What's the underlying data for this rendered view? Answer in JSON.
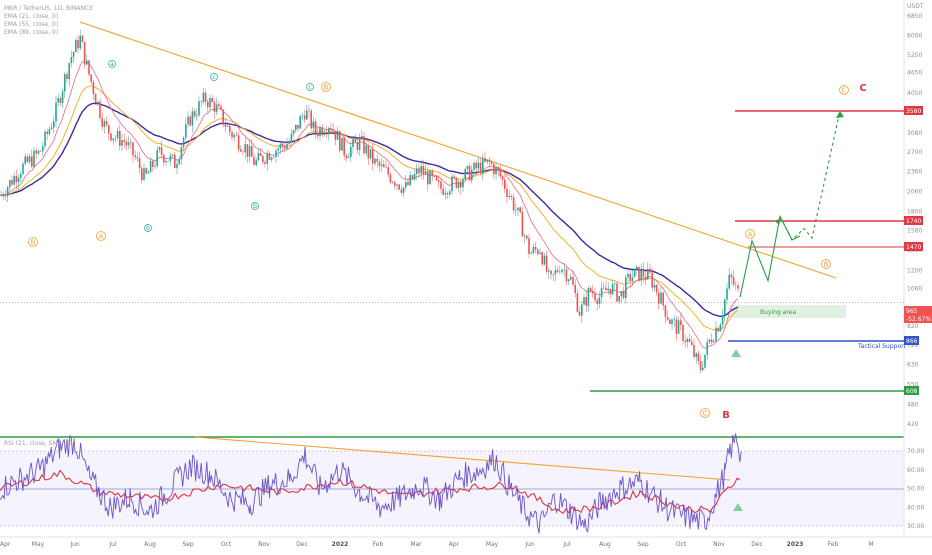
{
  "legend": {
    "title": "MKR / TetherUS, 1D, BINANCE",
    "ema1": "EMA (21, close, 0)",
    "ema2": "EMA (55, close, 0)",
    "ema3": "EMA (89, close, 0)",
    "rsi": "RSI (21, close, SMA, 21)"
  },
  "currency": "USDT",
  "colors": {
    "up": "#26a69a",
    "down": "#ef5350",
    "ema21": "#e66b8c",
    "ema55": "#f2b134",
    "ema89": "#3a2a9c",
    "trend": "#f2a22f",
    "target": "#e23744",
    "support": "#3451c9",
    "base": "#2e9b44",
    "rsi": "#6e55c7",
    "rsi_ma": "#e0353b"
  },
  "chart_data": {
    "type": "candlestick",
    "scale": "log",
    "x_labels": [
      "Apr",
      "May",
      "Jun",
      "Jul",
      "Aug",
      "Sep",
      "Oct",
      "Nov",
      "Dec",
      "2022",
      "Feb",
      "Mar",
      "Apr",
      "May",
      "Jun",
      "Jul",
      "Aug",
      "Sep",
      "Oct",
      "Nov",
      "Dec",
      "2023",
      "Feb",
      "M"
    ],
    "y_ticks": [
      6850,
      6000,
      5250,
      4650,
      4050,
      3550,
      3080,
      2700,
      2360,
      2060,
      1800,
      1580,
      1380,
      1200,
      1060,
      920,
      820,
      720,
      630,
      550,
      480,
      420
    ],
    "price_path": [
      [
        0,
        2000
      ],
      [
        20,
        2400
      ],
      [
        40,
        2700
      ],
      [
        55,
        3500
      ],
      [
        70,
        5100
      ],
      [
        80,
        5900
      ],
      [
        88,
        4700
      ],
      [
        95,
        4000
      ],
      [
        105,
        3200
      ],
      [
        115,
        3000
      ],
      [
        125,
        2900
      ],
      [
        135,
        2600
      ],
      [
        145,
        2250
      ],
      [
        160,
        2700
      ],
      [
        175,
        2500
      ],
      [
        190,
        3400
      ],
      [
        205,
        3900
      ],
      [
        215,
        3700
      ],
      [
        230,
        3100
      ],
      [
        245,
        2800
      ],
      [
        255,
        2500
      ],
      [
        270,
        2700
      ],
      [
        290,
        2900
      ],
      [
        305,
        3600
      ],
      [
        315,
        3100
      ],
      [
        330,
        3300
      ],
      [
        345,
        2700
      ],
      [
        360,
        2900
      ],
      [
        375,
        2500
      ],
      [
        390,
        2300
      ],
      [
        405,
        2100
      ],
      [
        420,
        2400
      ],
      [
        440,
        2100
      ],
      [
        455,
        2200
      ],
      [
        470,
        2350
      ],
      [
        480,
        2450
      ],
      [
        490,
        2500
      ],
      [
        500,
        2300
      ],
      [
        510,
        2000
      ],
      [
        520,
        1700
      ],
      [
        530,
        1350
      ],
      [
        540,
        1400
      ],
      [
        550,
        1100
      ],
      [
        560,
        1250
      ],
      [
        570,
        1150
      ],
      [
        580,
        900
      ],
      [
        590,
        1050
      ],
      [
        600,
        1000
      ],
      [
        610,
        1080
      ],
      [
        620,
        1000
      ],
      [
        630,
        1150
      ],
      [
        640,
        1180
      ],
      [
        650,
        1150
      ],
      [
        660,
        1000
      ],
      [
        670,
        850
      ],
      [
        680,
        800
      ],
      [
        690,
        720
      ],
      [
        700,
        610
      ],
      [
        710,
        750
      ],
      [
        720,
        850
      ],
      [
        730,
        1150
      ],
      [
        740,
        1000
      ]
    ],
    "current_price": {
      "label": "965",
      "change": "-52.67%"
    },
    "levels": [
      {
        "label": "3580",
        "value": 3580
      },
      {
        "label": "1740",
        "value": 1740
      },
      {
        "label": "1470",
        "value": 1470
      },
      {
        "label": "866",
        "value": 866
      },
      {
        "label": "608",
        "value": 608
      }
    ],
    "tactical_support_label": "Tactical Support",
    "buying_area": {
      "label": "Buying area",
      "low": 910,
      "high": 1030
    },
    "wave_labels": {
      "A": "A",
      "B": "B",
      "C": "C",
      "a": "a",
      "b": "b",
      "c": "c"
    },
    "projection_solid": [
      [
        740,
        1000
      ],
      [
        752,
        1470
      ],
      [
        768,
        1120
      ],
      [
        780,
        1740
      ],
      [
        792,
        1480
      ],
      [
        800,
        1520
      ]
    ],
    "projection_dashed": [
      [
        780,
        1740
      ],
      [
        792,
        1480
      ],
      [
        804,
        1600
      ],
      [
        812,
        1500
      ],
      [
        840,
        3580
      ]
    ],
    "rsi": {
      "ticks": [
        70,
        60,
        50,
        40,
        30
      ],
      "upper_band": 70,
      "lower_band": 30,
      "mid": 50,
      "path": [
        [
          0,
          50
        ],
        [
          20,
          55
        ],
        [
          40,
          60
        ],
        [
          60,
          72
        ],
        [
          75,
          75
        ],
        [
          90,
          55
        ],
        [
          110,
          40
        ],
        [
          130,
          45
        ],
        [
          150,
          38
        ],
        [
          170,
          50
        ],
        [
          190,
          62
        ],
        [
          210,
          58
        ],
        [
          230,
          45
        ],
        [
          250,
          42
        ],
        [
          270,
          52
        ],
        [
          290,
          55
        ],
        [
          305,
          68
        ],
        [
          320,
          50
        ],
        [
          340,
          60
        ],
        [
          360,
          48
        ],
        [
          380,
          40
        ],
        [
          400,
          45
        ],
        [
          420,
          52
        ],
        [
          440,
          44
        ],
        [
          460,
          56
        ],
        [
          480,
          60
        ],
        [
          495,
          66
        ],
        [
          510,
          50
        ],
        [
          525,
          38
        ],
        [
          540,
          30
        ],
        [
          555,
          45
        ],
        [
          570,
          38
        ],
        [
          585,
          30
        ],
        [
          600,
          42
        ],
        [
          620,
          50
        ],
        [
          640,
          54
        ],
        [
          655,
          45
        ],
        [
          670,
          38
        ],
        [
          690,
          34
        ],
        [
          705,
          32
        ],
        [
          715,
          45
        ],
        [
          725,
          58
        ],
        [
          730,
          70
        ],
        [
          737,
          77
        ],
        [
          742,
          65
        ]
      ],
      "ma_path": [
        [
          0,
          50
        ],
        [
          60,
          58
        ],
        [
          100,
          48
        ],
        [
          160,
          44
        ],
        [
          220,
          52
        ],
        [
          280,
          48
        ],
        [
          340,
          54
        ],
        [
          400,
          46
        ],
        [
          460,
          50
        ],
        [
          510,
          52
        ],
        [
          560,
          38
        ],
        [
          600,
          40
        ],
        [
          640,
          48
        ],
        [
          680,
          40
        ],
        [
          710,
          38
        ],
        [
          725,
          48
        ],
        [
          742,
          58
        ]
      ]
    }
  }
}
